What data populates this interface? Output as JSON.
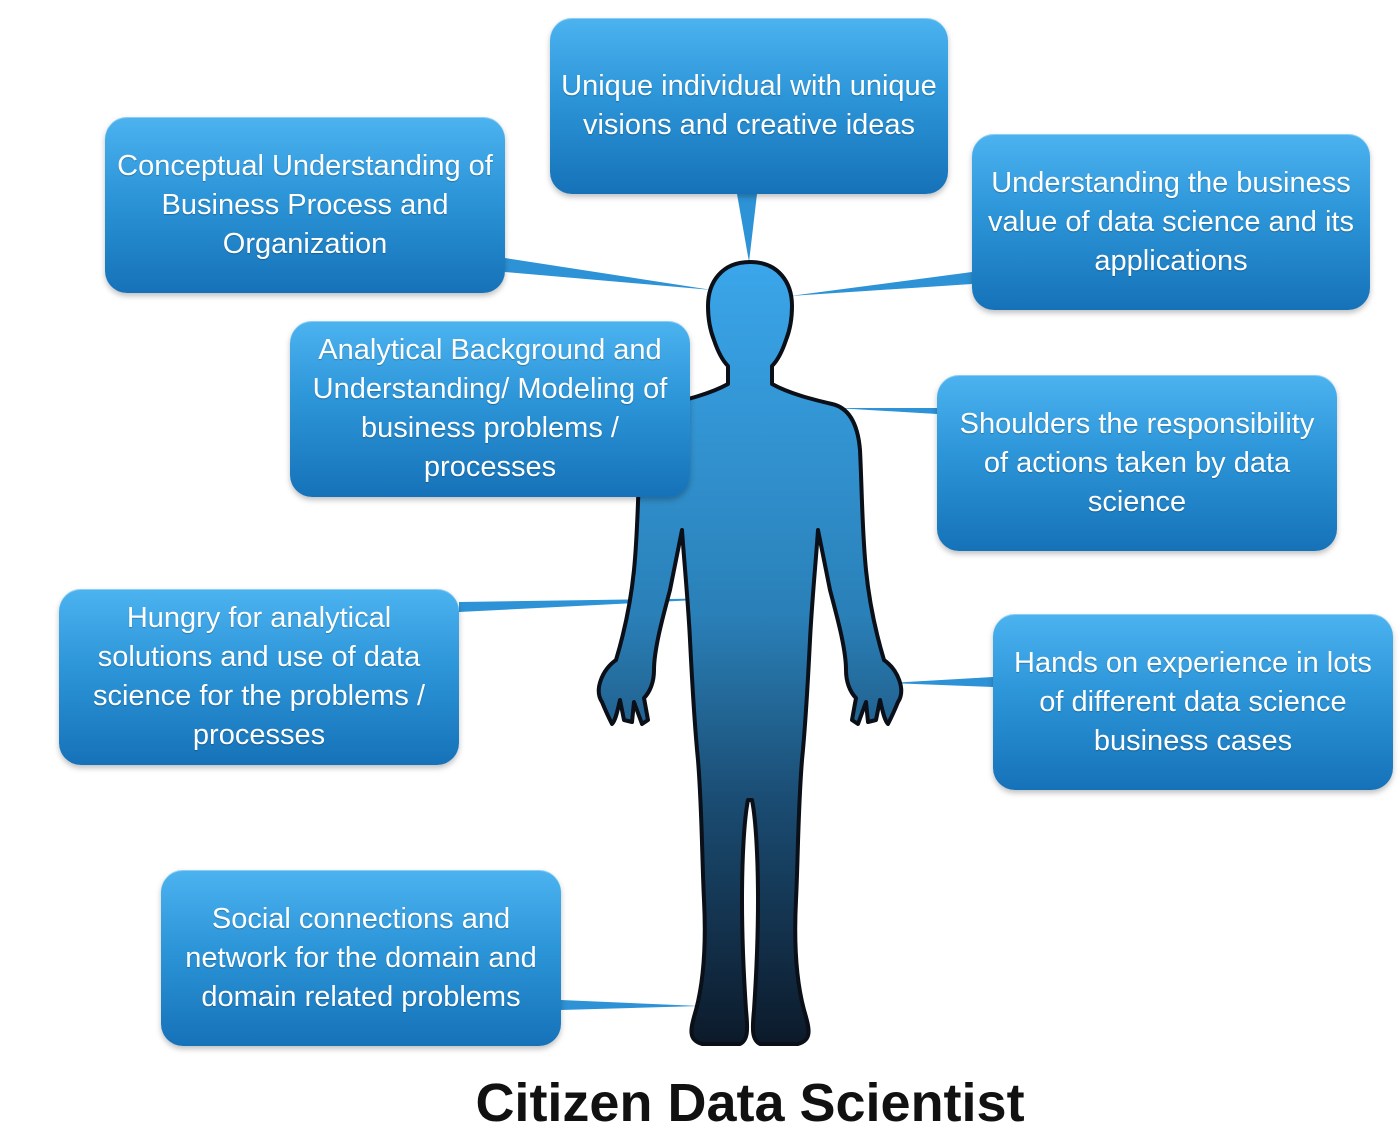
{
  "title": "Citizen Data Scientist",
  "boxes": [
    "Unique individual with unique visions and creative ideas",
    "Conceptual Understanding of Business Process and Organization",
    "Understanding the business value of data science and its applications",
    "Analytical Background and Understanding/ Modeling of business problems / processes",
    "Shoulders the responsibility of actions taken by data science",
    "Hungry for analytical solutions and use of data science for the problems / processes",
    "Hands on experience in lots of different data science business cases",
    "Social connections and network for the domain and domain related problems"
  ],
  "colors": {
    "box_top": "#4cb3f0",
    "box_bottom": "#1672b8",
    "figure_top": "#3aa6ea",
    "figure_bottom": "#0c1a2a",
    "title": "#111111"
  }
}
